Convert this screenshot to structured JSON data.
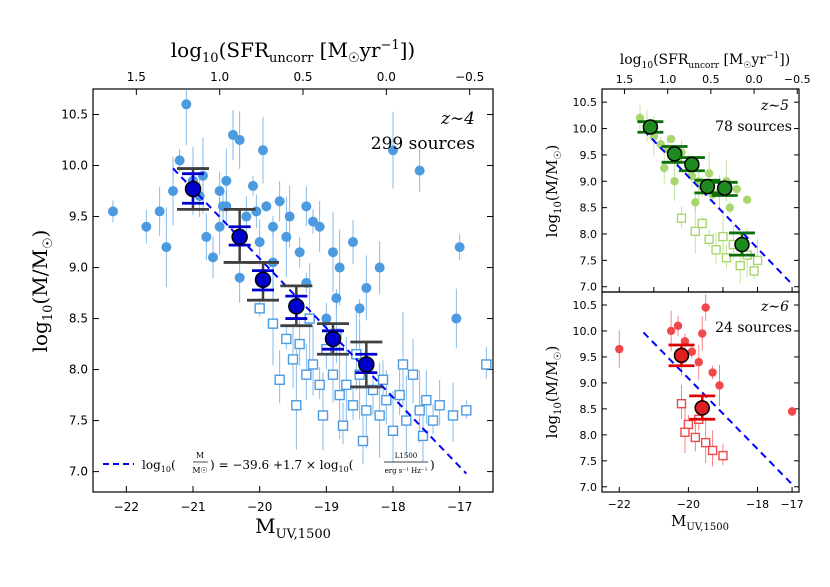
{
  "chart_data": [
    {
      "id": "z4",
      "type": "scatter",
      "title": "",
      "annotation": {
        "redshift": "z∼4",
        "count": "299 sources"
      },
      "xlabel": "M_UV,1500",
      "ylabel": "log10(M/M☉)",
      "top_xlabel": "log10(SFR_uncorr [M☉yr⁻¹])",
      "xlim": [
        -22.5,
        -16.5
      ],
      "ylim": [
        6.8,
        10.75
      ],
      "xticks": [
        -22,
        -21,
        -20,
        -19,
        -18,
        -17
      ],
      "yticks": [
        7.0,
        7.5,
        8.0,
        8.5,
        9.0,
        9.5,
        10.0,
        10.5
      ],
      "top_ticks": [
        {
          "label": "1.5",
          "muv": -21.85
        },
        {
          "label": "1.0",
          "muv": -20.6
        },
        {
          "label": "0.5",
          "muv": -19.35
        },
        {
          "label": "0.0",
          "muv": -18.1
        },
        {
          "label": "−0.5",
          "muv": -16.85
        }
      ],
      "fit_line": {
        "intercept": -39.6,
        "slope": 1.7,
        "x_range": [
          -21.3,
          -16.9
        ]
      },
      "legend": {
        "fit_label": "log10(M/M☉) = −39.6 + 1.7 × log10(L1500 / erg s⁻¹ Hz⁻¹)",
        "location": "lower-left"
      },
      "colors": {
        "points": "#4c9be1",
        "median": "#0000cd",
        "outer_err": "#404040",
        "inner_err": "#0000cd",
        "fit": "#0000ff"
      },
      "detections": [
        [
          -22.2,
          9.55
        ],
        [
          -21.7,
          9.4
        ],
        [
          -21.5,
          9.55
        ],
        [
          -21.4,
          9.2
        ],
        [
          -21.3,
          9.75
        ],
        [
          -21.2,
          10.05
        ],
        [
          -21.1,
          10.6
        ],
        [
          -21.0,
          9.85
        ],
        [
          -20.9,
          9.7
        ],
        [
          -20.85,
          9.9
        ],
        [
          -20.7,
          9.1
        ],
        [
          -20.6,
          9.4
        ],
        [
          -20.55,
          9.6
        ],
        [
          -20.5,
          9.85
        ],
        [
          -20.4,
          10.3
        ],
        [
          -20.3,
          10.25
        ],
        [
          -20.2,
          9.5
        ],
        [
          -20.1,
          9.8
        ],
        [
          -20.05,
          9.55
        ],
        [
          -20.0,
          9.25
        ],
        [
          -19.9,
          9.6
        ],
        [
          -19.8,
          9.4
        ],
        [
          -19.7,
          9.65
        ],
        [
          -19.6,
          9.3
        ],
        [
          -19.55,
          9.5
        ],
        [
          -19.4,
          9.15
        ],
        [
          -19.3,
          9.6
        ],
        [
          -19.2,
          9.45
        ],
        [
          -19.1,
          9.4
        ],
        [
          -18.9,
          9.15
        ],
        [
          -18.8,
          9.0
        ],
        [
          -18.6,
          9.25
        ],
        [
          -18.4,
          8.8
        ],
        [
          -18.2,
          9.0
        ],
        [
          -18.0,
          10.15
        ],
        [
          -17.6,
          9.95
        ],
        [
          -17.0,
          9.2
        ],
        [
          -17.05,
          8.5
        ],
        [
          -19.95,
          10.15
        ],
        [
          -20.5,
          9.6
        ],
        [
          -20.8,
          9.3
        ],
        [
          -19.3,
          8.85
        ],
        [
          -18.85,
          8.7
        ],
        [
          -19.0,
          8.5
        ],
        [
          -18.5,
          8.6
        ],
        [
          -19.8,
          9.05
        ],
        [
          -20.3,
          8.9
        ],
        [
          -20.6,
          9.75
        ]
      ],
      "upper_limits": [
        [
          -20.0,
          8.6
        ],
        [
          -19.8,
          8.45
        ],
        [
          -19.6,
          8.3
        ],
        [
          -19.5,
          8.1
        ],
        [
          -19.4,
          8.25
        ],
        [
          -19.3,
          7.95
        ],
        [
          -19.2,
          8.05
        ],
        [
          -19.1,
          7.85
        ],
        [
          -19.0,
          8.2
        ],
        [
          -18.9,
          7.95
        ],
        [
          -18.8,
          7.75
        ],
        [
          -18.7,
          7.85
        ],
        [
          -18.6,
          7.65
        ],
        [
          -18.5,
          7.95
        ],
        [
          -18.4,
          7.6
        ],
        [
          -18.3,
          7.8
        ],
        [
          -18.2,
          7.55
        ],
        [
          -18.1,
          7.7
        ],
        [
          -18.0,
          7.4
        ],
        [
          -17.9,
          7.75
        ],
        [
          -17.8,
          7.5
        ],
        [
          -17.7,
          7.95
        ],
        [
          -17.6,
          7.6
        ],
        [
          -17.5,
          7.7
        ],
        [
          -17.4,
          7.5
        ],
        [
          -17.3,
          7.65
        ],
        [
          -17.1,
          7.55
        ],
        [
          -16.9,
          7.6
        ],
        [
          -16.6,
          8.05
        ],
        [
          -19.7,
          7.9
        ],
        [
          -19.45,
          7.65
        ],
        [
          -19.05,
          7.55
        ],
        [
          -18.75,
          7.45
        ],
        [
          -18.45,
          7.3
        ],
        [
          -18.15,
          7.9
        ],
        [
          -18.85,
          8.35
        ],
        [
          -19.25,
          8.5
        ],
        [
          -17.85,
          8.05
        ],
        [
          -17.55,
          7.35
        ],
        [
          -18.55,
          8.15
        ]
      ],
      "medians": [
        {
          "x": -21.0,
          "y": 9.77,
          "outer": [
            9.57,
            9.97
          ],
          "inner": [
            9.63,
            9.92
          ]
        },
        {
          "x": -20.3,
          "y": 9.3,
          "outer": [
            9.05,
            9.57
          ],
          "inner": [
            9.22,
            9.4
          ]
        },
        {
          "x": -19.95,
          "y": 8.88,
          "outer": [
            8.68,
            9.05
          ],
          "inner": [
            8.78,
            8.97
          ]
        },
        {
          "x": -19.45,
          "y": 8.62,
          "outer": [
            8.43,
            8.82
          ],
          "inner": [
            8.5,
            8.72
          ]
        },
        {
          "x": -18.9,
          "y": 8.3,
          "outer": [
            8.15,
            8.45
          ],
          "inner": [
            8.2,
            8.38
          ]
        },
        {
          "x": -18.4,
          "y": 8.05,
          "outer": [
            7.83,
            8.27
          ],
          "inner": [
            7.97,
            8.15
          ]
        }
      ]
    },
    {
      "id": "z5",
      "type": "scatter",
      "annotation": {
        "redshift": "z∼5",
        "count": "78 sources"
      },
      "ylabel": "log10(M/M☉)",
      "top_xlabel": "log10(SFR_uncorr [M☉yr⁻¹])",
      "xlim": [
        -22.5,
        -16.8
      ],
      "ylim": [
        6.9,
        10.75
      ],
      "yticks": [
        7.0,
        7.5,
        8.0,
        8.5,
        9.0,
        9.5,
        10.0,
        10.5
      ],
      "top_ticks": [
        {
          "label": "1.5",
          "muv": -21.85
        },
        {
          "label": "1.0",
          "muv": -20.6
        },
        {
          "label": "0.5",
          "muv": -19.35
        },
        {
          "label": "0.0",
          "muv": -18.1
        },
        {
          "label": "−0.5",
          "muv": -16.85
        }
      ],
      "fit_line": {
        "intercept": -39.6,
        "slope": 1.7,
        "x_range": [
          -21.3,
          -17.0
        ]
      },
      "colors": {
        "points": "#a8d66f",
        "median": "#1f8a1f",
        "inner_err": "#0a6e0a",
        "fit": "#0000ff"
      },
      "detections": [
        [
          -21.4,
          10.2
        ],
        [
          -21.2,
          10.05
        ],
        [
          -21.0,
          9.85
        ],
        [
          -20.8,
          9.7
        ],
        [
          -20.6,
          9.6
        ],
        [
          -20.5,
          9.8
        ],
        [
          -20.3,
          9.4
        ],
        [
          -20.2,
          9.55
        ],
        [
          -20.0,
          9.3
        ],
        [
          -19.9,
          9.1
        ],
        [
          -19.7,
          9.0
        ],
        [
          -19.6,
          8.9
        ],
        [
          -19.4,
          9.15
        ],
        [
          -19.3,
          8.75
        ],
        [
          -19.1,
          8.8
        ],
        [
          -18.9,
          9.0
        ],
        [
          -18.6,
          8.85
        ],
        [
          -18.3,
          8.65
        ],
        [
          -20.7,
          9.25
        ],
        [
          -19.8,
          8.6
        ],
        [
          -18.8,
          8.5
        ],
        [
          -20.4,
          9.0
        ]
      ],
      "upper_limits": [
        [
          -20.2,
          8.3
        ],
        [
          -19.8,
          8.05
        ],
        [
          -19.6,
          8.2
        ],
        [
          -19.4,
          7.9
        ],
        [
          -19.2,
          7.7
        ],
        [
          -19.0,
          7.95
        ],
        [
          -18.9,
          7.55
        ],
        [
          -18.7,
          7.8
        ],
        [
          -18.5,
          7.4
        ],
        [
          -18.3,
          7.6
        ],
        [
          -18.1,
          7.3
        ],
        [
          -18.0,
          7.5
        ]
      ],
      "medians": [
        {
          "x": -21.1,
          "y": 10.03,
          "inner": [
            9.93,
            10.13
          ]
        },
        {
          "x": -20.4,
          "y": 9.52,
          "inner": [
            9.36,
            9.66
          ]
        },
        {
          "x": -19.9,
          "y": 9.32,
          "inner": [
            9.2,
            9.45
          ]
        },
        {
          "x": -19.45,
          "y": 8.9,
          "inner": [
            8.78,
            9.02
          ]
        },
        {
          "x": -18.95,
          "y": 8.87,
          "inner": [
            8.73,
            8.98
          ]
        },
        {
          "x": -18.45,
          "y": 7.8,
          "inner": [
            7.6,
            8.02
          ]
        }
      ]
    },
    {
      "id": "z6",
      "type": "scatter",
      "annotation": {
        "redshift": "z∼6",
        "count": "24 sources"
      },
      "xlabel": "M_UV,1500",
      "ylabel": "log10(M/M☉)",
      "xlim": [
        -22.5,
        -16.8
      ],
      "ylim": [
        6.9,
        10.75
      ],
      "xticks": [
        -22,
        -20,
        -18,
        -17
      ],
      "xtick_labels": [
        "−22",
        "−20",
        "−18",
        "−17"
      ],
      "yticks": [
        7.0,
        7.5,
        8.0,
        8.5,
        9.0,
        9.5,
        10.0,
        10.5
      ],
      "fit_line": {
        "intercept": -39.6,
        "slope": 1.7,
        "x_range": [
          -21.3,
          -17.0
        ]
      },
      "colors": {
        "points": "#f0474a",
        "median": "#e02020",
        "inner_err": "#e00000",
        "fit": "#0000ff"
      },
      "detections": [
        [
          -22.0,
          9.65
        ],
        [
          -20.5,
          10.0
        ],
        [
          -20.3,
          10.1
        ],
        [
          -20.1,
          9.8
        ],
        [
          -19.9,
          9.6
        ],
        [
          -19.7,
          9.4
        ],
        [
          -19.6,
          9.95
        ],
        [
          -19.5,
          10.45
        ],
        [
          -19.3,
          9.2
        ],
        [
          -19.1,
          8.95
        ],
        [
          -17.0,
          8.45
        ],
        [
          -20.2,
          9.5
        ]
      ],
      "upper_limits": [
        [
          -20.2,
          8.6
        ],
        [
          -20.0,
          8.2
        ],
        [
          -19.8,
          7.95
        ],
        [
          -19.7,
          8.3
        ],
        [
          -19.5,
          7.85
        ],
        [
          -19.3,
          7.7
        ],
        [
          -19.0,
          7.6
        ],
        [
          -20.1,
          8.05
        ]
      ],
      "medians": [
        {
          "x": -20.2,
          "y": 9.53,
          "inner": [
            9.33,
            9.73
          ]
        },
        {
          "x": -19.6,
          "y": 8.52,
          "inner": [
            8.3,
            8.75
          ]
        }
      ]
    }
  ],
  "labels": {
    "z4": {
      "annot_z": "z∼4",
      "annot_n": "299 sources",
      "xlabel_main": "M",
      "xlabel_sub": "UV,1500",
      "ylabel_pre": "log",
      "ylabel_sub": "10",
      "ylabel_post": "(M/M",
      "ylabel_sun": "☉",
      "ylabel_close": ")",
      "top_pre": "log",
      "top_sub": "10",
      "top_mid": "(SFR",
      "top_sub2": "uncorr",
      "top_bracket": " [M",
      "top_sun": "☉",
      "top_unit": "yr",
      "top_exp": "−1",
      "top_close": "])",
      "legend_prefix": "log",
      "legend_sub": "10",
      "legend_m": "M",
      "legend_msun": "M☉",
      "legend_eq": "= −39.6 +1.7 × log",
      "legend_sub2": "10",
      "legend_l": "L1500",
      "legend_unit": "erg s⁻¹ Hz⁻¹"
    },
    "z5": {
      "annot_z": "z∼5",
      "annot_n": "78 sources"
    },
    "z6": {
      "annot_z": "z∼6",
      "annot_n": "24 sources",
      "xlabel_main": "M",
      "xlabel_sub": "UV,1500"
    }
  }
}
